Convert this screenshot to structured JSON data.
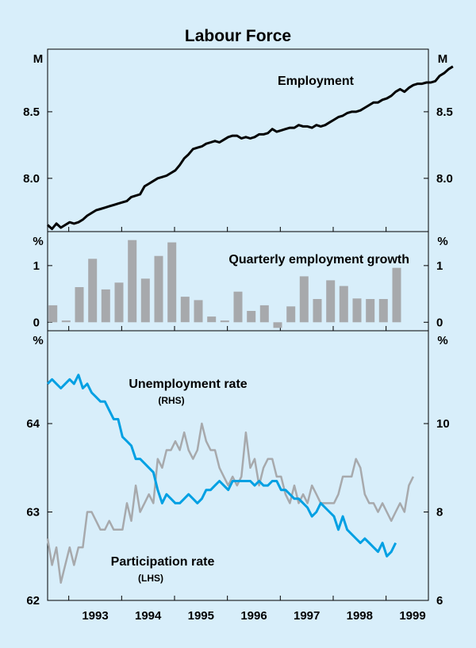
{
  "colors": {
    "background": "#d8eefa",
    "employment": "#000000",
    "bars": "#a7a9ac",
    "unemployment": "#00a0e3",
    "participation": "#a7a9ac",
    "frame": "#000000"
  },
  "chart_data": {
    "type": "line",
    "title": "Labour Force",
    "x_tick_labels": [
      "1993",
      "1994",
      "1995",
      "1996",
      "1997",
      "1998",
      "1999"
    ],
    "x_range": [
      1992.6,
      1999.8
    ],
    "panels": [
      {
        "name": "employment",
        "type": "line",
        "unit_left": "M",
        "unit_right": "M",
        "y_range": [
          7.6,
          8.97
        ],
        "y_ticks": [
          8.0,
          8.5
        ],
        "y_tick_labels": [
          "8.0",
          "8.5"
        ],
        "series": [
          {
            "name": "Employment",
            "label": "Employment",
            "start": 1992.6,
            "step": 0.0833,
            "values": [
              7.65,
              7.62,
              7.66,
              7.63,
              7.65,
              7.67,
              7.66,
              7.67,
              7.69,
              7.72,
              7.74,
              7.76,
              7.77,
              7.78,
              7.79,
              7.8,
              7.81,
              7.82,
              7.83,
              7.86,
              7.87,
              7.88,
              7.94,
              7.96,
              7.98,
              8.0,
              8.01,
              8.02,
              8.04,
              8.06,
              8.1,
              8.15,
              8.18,
              8.22,
              8.23,
              8.24,
              8.26,
              8.27,
              8.28,
              8.27,
              8.29,
              8.31,
              8.32,
              8.32,
              8.3,
              8.31,
              8.3,
              8.31,
              8.33,
              8.33,
              8.34,
              8.37,
              8.35,
              8.36,
              8.37,
              8.38,
              8.38,
              8.4,
              8.39,
              8.39,
              8.38,
              8.4,
              8.39,
              8.4,
              8.42,
              8.44,
              8.46,
              8.47,
              8.49,
              8.5,
              8.5,
              8.51,
              8.53,
              8.55,
              8.57,
              8.57,
              8.59,
              8.6,
              8.62,
              8.65,
              8.67,
              8.65,
              8.68,
              8.7,
              8.71,
              8.71,
              8.72,
              8.72,
              8.73,
              8.77,
              8.79,
              8.82,
              8.84
            ]
          }
        ]
      },
      {
        "name": "growth",
        "type": "bar",
        "unit_left": "%",
        "unit_right": "%",
        "y_range": [
          -0.15,
          1.6
        ],
        "y_ticks": [
          0,
          1
        ],
        "y_tick_labels": [
          "0",
          "1"
        ],
        "series": [
          {
            "name": "Quarterly employment growth",
            "label": "Quarterly employment growth",
            "x": [
              1992.7,
              1992.95,
              1993.2,
              1993.45,
              1993.7,
              1993.95,
              1994.2,
              1994.45,
              1994.7,
              1994.95,
              1995.2,
              1995.45,
              1995.7,
              1995.95,
              1996.2,
              1996.45,
              1996.7,
              1996.95,
              1997.2,
              1997.45,
              1997.7,
              1997.95,
              1998.2,
              1998.45,
              1998.7,
              1998.95,
              1999.2
            ],
            "values": [
              0.3,
              0.03,
              0.62,
              1.12,
              0.58,
              0.7,
              1.45,
              0.77,
              1.17,
              1.41,
              0.45,
              0.39,
              0.1,
              0.03,
              0.54,
              0.2,
              0.3,
              -0.1,
              0.28,
              0.81,
              0.41,
              0.74,
              0.64,
              0.42,
              0.41,
              0.41,
              0.96
            ]
          }
        ]
      },
      {
        "name": "rates",
        "type": "line",
        "unit_left": "%",
        "unit_right": "%",
        "left_range": [
          62,
          65.05
        ],
        "right_range": [
          6,
          12.1
        ],
        "left_ticks": [
          62,
          63,
          64
        ],
        "left_tick_labels": [
          "62",
          "63",
          "64"
        ],
        "right_ticks": [
          6,
          8,
          10
        ],
        "right_tick_labels": [
          "6",
          "8",
          "10"
        ],
        "series": [
          {
            "name": "Unemployment rate",
            "label": "Unemployment rate",
            "sublabel": "(RHS)",
            "axis": "right",
            "start": 1992.6,
            "step": 0.0833,
            "values": [
              10.9,
              11.0,
              10.9,
              10.8,
              10.9,
              11.0,
              10.9,
              11.1,
              10.8,
              10.9,
              10.7,
              10.6,
              10.5,
              10.5,
              10.3,
              10.1,
              10.1,
              9.7,
              9.6,
              9.5,
              9.2,
              9.2,
              9.1,
              9.0,
              8.9,
              8.5,
              8.2,
              8.4,
              8.3,
              8.2,
              8.2,
              8.3,
              8.4,
              8.3,
              8.2,
              8.3,
              8.5,
              8.5,
              8.6,
              8.7,
              8.6,
              8.5,
              8.7,
              8.7,
              8.7,
              8.7,
              8.7,
              8.6,
              8.7,
              8.6,
              8.6,
              8.7,
              8.7,
              8.5,
              8.5,
              8.4,
              8.3,
              8.3,
              8.2,
              8.1,
              7.9,
              8.0,
              8.2,
              8.1,
              8.0,
              7.9,
              7.6,
              7.9,
              7.6,
              7.5,
              7.4,
              7.3,
              7.4,
              7.3,
              7.2,
              7.1,
              7.3,
              7.0,
              7.1,
              7.3
            ]
          },
          {
            "name": "Participation rate",
            "label": "Participation rate",
            "sublabel": "(LHS)",
            "axis": "left",
            "start": 1992.6,
            "step": 0.0833,
            "values": [
              62.7,
              62.4,
              62.6,
              62.2,
              62.4,
              62.6,
              62.4,
              62.6,
              62.6,
              63.0,
              63.0,
              62.9,
              62.8,
              62.8,
              62.9,
              62.8,
              62.8,
              62.8,
              63.1,
              62.9,
              63.3,
              63.0,
              63.1,
              63.2,
              63.1,
              63.6,
              63.5,
              63.7,
              63.7,
              63.8,
              63.7,
              63.9,
              63.7,
              63.6,
              63.7,
              64.0,
              63.8,
              63.7,
              63.7,
              63.5,
              63.4,
              63.3,
              63.4,
              63.3,
              63.4,
              63.9,
              63.5,
              63.6,
              63.3,
              63.5,
              63.6,
              63.6,
              63.4,
              63.4,
              63.2,
              63.1,
              63.3,
              63.1,
              63.2,
              63.1,
              63.3,
              63.2,
              63.1,
              63.1,
              63.1,
              63.1,
              63.2,
              63.4,
              63.4,
              63.4,
              63.6,
              63.5,
              63.2,
              63.1,
              63.1,
              63.0,
              63.1,
              63.0,
              62.9,
              63.0,
              63.1,
              63.0,
              63.3,
              63.4
            ]
          }
        ]
      }
    ]
  }
}
